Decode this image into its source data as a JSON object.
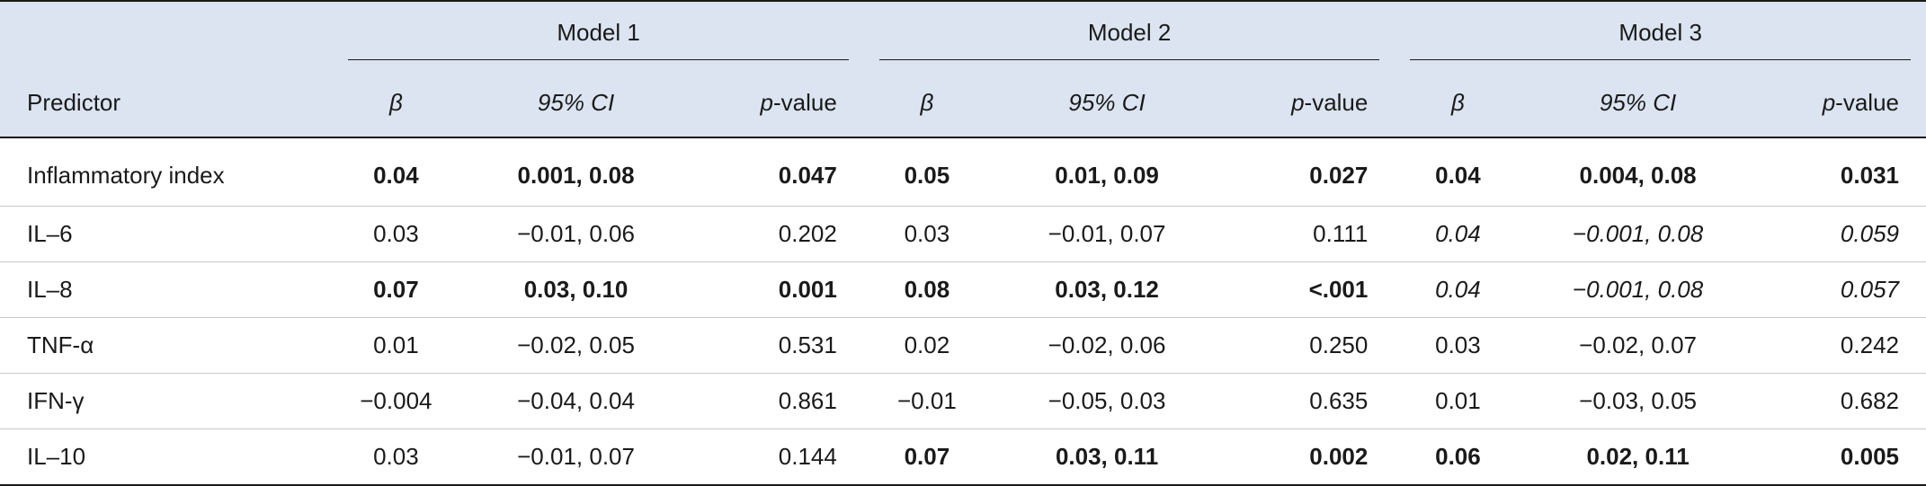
{
  "table": {
    "groups": [
      "Model 1",
      "Model 2",
      "Model 3"
    ],
    "predictor_header": "Predictor",
    "sub_headers": {
      "beta": "β",
      "ci": "95% CI",
      "p_prefix": "p",
      "p_suffix": "-value"
    },
    "rows": [
      {
        "label": "Inflammatory index",
        "cells": [
          {
            "v": "0.04",
            "s": "b"
          },
          {
            "v": "0.001, 0.08",
            "s": "b"
          },
          {
            "v": "0.047",
            "s": "b"
          },
          {
            "v": "0.05",
            "s": "b"
          },
          {
            "v": "0.01, 0.09",
            "s": "b"
          },
          {
            "v": "0.027",
            "s": "b"
          },
          {
            "v": "0.04",
            "s": "b"
          },
          {
            "v": "0.004, 0.08",
            "s": "b"
          },
          {
            "v": "0.031",
            "s": "b"
          }
        ]
      },
      {
        "label": "IL–6",
        "cells": [
          {
            "v": "0.03",
            "s": ""
          },
          {
            "v": "−0.01, 0.06",
            "s": ""
          },
          {
            "v": "0.202",
            "s": ""
          },
          {
            "v": "0.03",
            "s": ""
          },
          {
            "v": "−0.01, 0.07",
            "s": ""
          },
          {
            "v": "0.111",
            "s": ""
          },
          {
            "v": "0.04",
            "s": "i"
          },
          {
            "v": "−0.001, 0.08",
            "s": "i"
          },
          {
            "v": "0.059",
            "s": "i"
          }
        ]
      },
      {
        "label": "IL–8",
        "cells": [
          {
            "v": "0.07",
            "s": "b"
          },
          {
            "v": "0.03, 0.10",
            "s": "b"
          },
          {
            "v": "0.001",
            "s": "b"
          },
          {
            "v": "0.08",
            "s": "b"
          },
          {
            "v": "0.03, 0.12",
            "s": "b"
          },
          {
            "v": "<.001",
            "s": "b"
          },
          {
            "v": "0.04",
            "s": "i"
          },
          {
            "v": "−0.001, 0.08",
            "s": "i"
          },
          {
            "v": "0.057",
            "s": "i"
          }
        ]
      },
      {
        "label": "TNF-α",
        "cells": [
          {
            "v": "0.01",
            "s": ""
          },
          {
            "v": "−0.02, 0.05",
            "s": ""
          },
          {
            "v": "0.531",
            "s": ""
          },
          {
            "v": "0.02",
            "s": ""
          },
          {
            "v": "−0.02, 0.06",
            "s": ""
          },
          {
            "v": "0.250",
            "s": ""
          },
          {
            "v": "0.03",
            "s": ""
          },
          {
            "v": "−0.02, 0.07",
            "s": ""
          },
          {
            "v": "0.242",
            "s": ""
          }
        ]
      },
      {
        "label": "IFN-γ",
        "cells": [
          {
            "v": "−0.004",
            "s": ""
          },
          {
            "v": "−0.04, 0.04",
            "s": ""
          },
          {
            "v": "0.861",
            "s": ""
          },
          {
            "v": "−0.01",
            "s": ""
          },
          {
            "v": "−0.05, 0.03",
            "s": ""
          },
          {
            "v": "0.635",
            "s": ""
          },
          {
            "v": "0.01",
            "s": ""
          },
          {
            "v": "−0.03, 0.05",
            "s": ""
          },
          {
            "v": "0.682",
            "s": ""
          }
        ]
      },
      {
        "label": "IL–10",
        "cells": [
          {
            "v": "0.03",
            "s": ""
          },
          {
            "v": "−0.01, 0.07",
            "s": ""
          },
          {
            "v": "0.144",
            "s": ""
          },
          {
            "v": "0.07",
            "s": "b"
          },
          {
            "v": "0.03, 0.11",
            "s": "b"
          },
          {
            "v": "0.002",
            "s": "b"
          },
          {
            "v": "0.06",
            "s": "b"
          },
          {
            "v": "0.02, 0.11",
            "s": "b"
          },
          {
            "v": "0.005",
            "s": "b"
          }
        ]
      }
    ]
  }
}
